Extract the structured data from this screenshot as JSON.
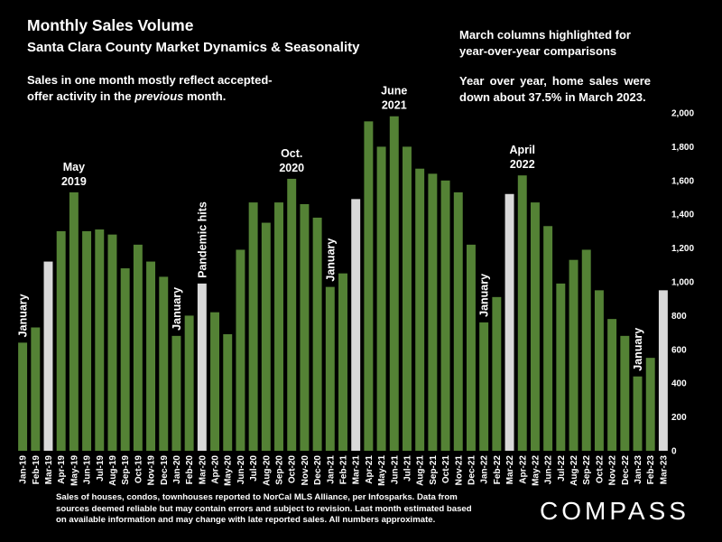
{
  "header": {
    "title": "Monthly Sales Volume",
    "subtitle": "Santa Clara County Market Dynamics & Seasonality",
    "note_line1": "Sales in one month mostly reflect accepted-",
    "note_line2_prefix": "offer activity in the ",
    "note_line2_italic": "previous",
    "note_line2_suffix": " month."
  },
  "side_notes": {
    "highlight_note": "March columns highlighted for year-over-year comparisons",
    "yoy_note": "Year over year, home sales were down  about 37.5% in March 2023."
  },
  "footnote": "Sales of houses, condos, townhouses reported to NorCal MLS Alliance, per Infosparks. Data from sources deemed reliable but may contain errors and subject to revision. Last month estimated based on available information and may change with late reported sales. All numbers approximate.",
  "logo": "COMPASS",
  "colors": {
    "bar": "#548235",
    "highlight": "#d9d9d9",
    "background": "#000000",
    "text": "#ffffff"
  },
  "chart_data": {
    "type": "bar",
    "title": "Monthly Sales Volume",
    "ylim": [
      0,
      2000
    ],
    "y_ticks": [
      0,
      200,
      400,
      600,
      800,
      1000,
      1200,
      1400,
      1600,
      1800,
      2000
    ],
    "y_tick_labels": [
      "0",
      "200",
      "400",
      "600",
      "800",
      "1,000",
      "1,200",
      "1,400",
      "1,600",
      "1,800",
      "2,000"
    ],
    "y_axis_side": "right",
    "grid": false,
    "categories": [
      "Jan-19",
      "Feb-19",
      "Mar-19",
      "Apr-19",
      "May-19",
      "Jun-19",
      "Jul-19",
      "Aug-19",
      "Sep-19",
      "Oct-19",
      "Nov-19",
      "Dec-19",
      "Jan-20",
      "Feb-20",
      "Mar-20",
      "Apr-20",
      "May-20",
      "Jun-20",
      "Jul-20",
      "Aug-20",
      "Sep-20",
      "Oct-20",
      "Nov-20",
      "Dec-20",
      "Jan-21",
      "Feb-21",
      "Mar-21",
      "Apr-21",
      "May-21",
      "Jun-21",
      "Jul-21",
      "Aug-21",
      "Sep-21",
      "Oct-21",
      "Nov-21",
      "Dec-21",
      "Jan-22",
      "Feb-22",
      "Mar-22",
      "Apr-22",
      "May-22",
      "Jun-22",
      "Jul-22",
      "Aug-22",
      "Sep-22",
      "Oct-22",
      "Nov-22",
      "Dec-22",
      "Jan-23",
      "Feb-23",
      "Mar-23"
    ],
    "values": [
      640,
      730,
      1120,
      1300,
      1530,
      1300,
      1310,
      1280,
      1080,
      1220,
      1120,
      1030,
      680,
      800,
      990,
      820,
      690,
      1190,
      1470,
      1350,
      1470,
      1610,
      1460,
      1380,
      970,
      1050,
      1490,
      1950,
      1800,
      1980,
      1800,
      1670,
      1640,
      1600,
      1530,
      1220,
      760,
      910,
      1520,
      1630,
      1470,
      1330,
      990,
      1130,
      1190,
      950,
      780,
      680,
      440,
      550,
      950
    ],
    "highlighted": [
      "Mar-19",
      "Mar-20",
      "Mar-21",
      "Mar-22",
      "Mar-23"
    ],
    "annotations": [
      {
        "text": "January",
        "category": "Jan-19",
        "orientation": "vertical"
      },
      {
        "text": "May",
        "text2": "2019",
        "category": "May-19",
        "orientation": "horizontal"
      },
      {
        "text": "January",
        "category": "Jan-20",
        "orientation": "vertical"
      },
      {
        "text": "Pandemic hits",
        "category": "Mar-20",
        "orientation": "vertical"
      },
      {
        "text": "Oct.",
        "text2": "2020",
        "category": "Oct-20",
        "orientation": "horizontal"
      },
      {
        "text": "January",
        "category": "Jan-21",
        "orientation": "vertical"
      },
      {
        "text": "June",
        "text2": "2021",
        "category": "Jun-21",
        "orientation": "horizontal"
      },
      {
        "text": "January",
        "category": "Jan-22",
        "orientation": "vertical"
      },
      {
        "text": "April",
        "text2": "2022",
        "category": "Apr-22",
        "orientation": "horizontal"
      },
      {
        "text": "January",
        "category": "Jan-23",
        "orientation": "vertical"
      }
    ]
  }
}
